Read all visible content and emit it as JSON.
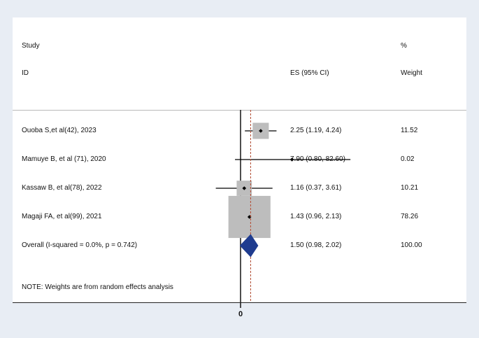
{
  "header": {
    "study_line1": "Study",
    "study_line2": "ID",
    "es_label": "ES (95% CI)",
    "weight_line1": "%",
    "weight_line2": "Weight"
  },
  "note": "NOTE: Weights are from random effects analysis",
  "axis_tick_label": "0",
  "colors": {
    "box": "#bdbdbd",
    "marker": "#000000",
    "null_line": "#222222",
    "overall_line": "#b5543c",
    "diamond": "#1f3c8f",
    "background": "#e8edf4"
  },
  "chart_data": {
    "type": "forest",
    "x_scale": "log",
    "null_value": 1,
    "title": "",
    "xlabel": "",
    "studies": [
      {
        "label": "Ouoba S,et al(42), 2023",
        "es": 2.25,
        "lo": 1.19,
        "hi": 4.24,
        "ci_text": "2.25 (1.19, 4.24)",
        "weight": 11.52,
        "weight_text": "11.52"
      },
      {
        "label": "Mamuye B, et al (71), 2020",
        "es": 7.9,
        "lo": 0.8,
        "hi": 82.6,
        "ci_text": "7.90 (0.80, 82.60)",
        "weight": 0.02,
        "weight_text": "0.02"
      },
      {
        "label": "Kassaw B, et al(78), 2022",
        "es": 1.16,
        "lo": 0.37,
        "hi": 3.61,
        "ci_text": "1.16 (0.37, 3.61)",
        "weight": 10.21,
        "weight_text": "10.21"
      },
      {
        "label": "Magaji FA, et al(99), 2021",
        "es": 1.43,
        "lo": 0.96,
        "hi": 2.13,
        "ci_text": "1.43 (0.96, 2.13)",
        "weight": 78.26,
        "weight_text": "78.26"
      }
    ],
    "overall": {
      "label": "Overall  (I-squared = 0.0%, p = 0.742)",
      "es": 1.5,
      "lo": 0.98,
      "hi": 2.02,
      "ci_text": "1.50 (0.98, 2.02)",
      "weight_text": "100.00"
    }
  }
}
